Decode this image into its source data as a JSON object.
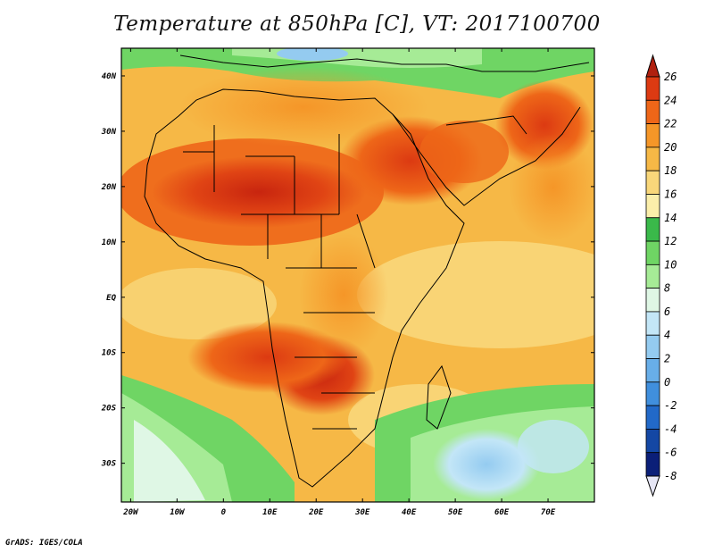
{
  "title": "Temperature at 850hPa [C], VT: 2017100700",
  "credit": "GrADS: IGES/COLA",
  "map": {
    "lat_labels": [
      "40N",
      "30N",
      "20N",
      "10N",
      "EQ",
      "10S",
      "20S",
      "30S"
    ],
    "lon_labels": [
      "20W",
      "10W",
      "0",
      "10E",
      "20E",
      "30E",
      "40E",
      "50E",
      "60E",
      "70E"
    ],
    "lon_range": [
      -22,
      80
    ],
    "lat_range": [
      -37,
      45
    ]
  },
  "colorbar": {
    "labels": [
      "26",
      "24",
      "22",
      "20",
      "18",
      "16",
      "14",
      "12",
      "10",
      "8",
      "6",
      "4",
      "2",
      "0",
      "-2",
      "-4",
      "-6",
      "-8"
    ],
    "colors": [
      "#b0200f",
      "#dc3a12",
      "#ee6618",
      "#f59628",
      "#f6b846",
      "#f9d77a",
      "#fbeeaa",
      "#3ab94a",
      "#6fd564",
      "#a6eb96",
      "#dff7e5",
      "#c3e6f7",
      "#94cbf0",
      "#68aee8",
      "#408fdd",
      "#2269c8",
      "#1447a4",
      "#0b1f78",
      "#e6e6f5"
    ]
  }
}
